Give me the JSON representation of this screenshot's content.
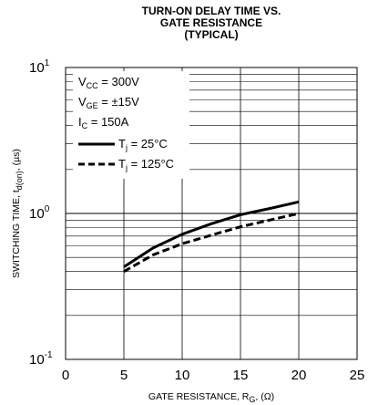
{
  "chart_data": {
    "type": "line",
    "title_lines": [
      "TURN-ON DELAY TIME VS.",
      "GATE RESISTANCE",
      "(TYPICAL)"
    ],
    "xlabel": {
      "main": "GATE RESISTANCE, R",
      "sub": "G",
      "tail": ", (Ω)"
    },
    "ylabel": {
      "main": "SWITCHING TIME, t",
      "sub": "d(on)",
      "tail": ", (µs)"
    },
    "x_ticks": [
      "0",
      "5",
      "10",
      "15",
      "20",
      "25"
    ],
    "y_ticks": [
      {
        "base": "10",
        "exp": "1",
        "value": 10
      },
      {
        "base": "10",
        "exp": "0",
        "value": 1
      },
      {
        "base": "10",
        "exp": "-1",
        "value": 0.1
      }
    ],
    "xlim": [
      0,
      25
    ],
    "ylim": [
      0.1,
      10
    ],
    "yscale": "log",
    "grid": true,
    "conditions": [
      {
        "main": "V",
        "sub": "CC",
        "tail": " = 300V"
      },
      {
        "main": "V",
        "sub": "GE",
        "tail": " = ±15V"
      },
      {
        "main": "I",
        "sub": "C",
        "tail": " = 150A"
      }
    ],
    "series": [
      {
        "label": {
          "main": "T",
          "sub": "j",
          "tail": " = 25°C"
        },
        "style": "solid",
        "x": [
          5,
          7.5,
          10,
          12.5,
          15,
          17.5,
          20
        ],
        "y": [
          0.43,
          0.58,
          0.72,
          0.85,
          0.98,
          1.08,
          1.2
        ]
      },
      {
        "label": {
          "main": "T",
          "sub": "j",
          "tail": " = 125°C"
        },
        "style": "dashed",
        "x": [
          5,
          7.5,
          10,
          12.5,
          15,
          17.5,
          20
        ],
        "y": [
          0.4,
          0.52,
          0.62,
          0.71,
          0.81,
          0.9,
          1.0
        ]
      }
    ],
    "colors": {
      "line": "#000000",
      "grid": "#000000",
      "background": "#ffffff"
    }
  }
}
